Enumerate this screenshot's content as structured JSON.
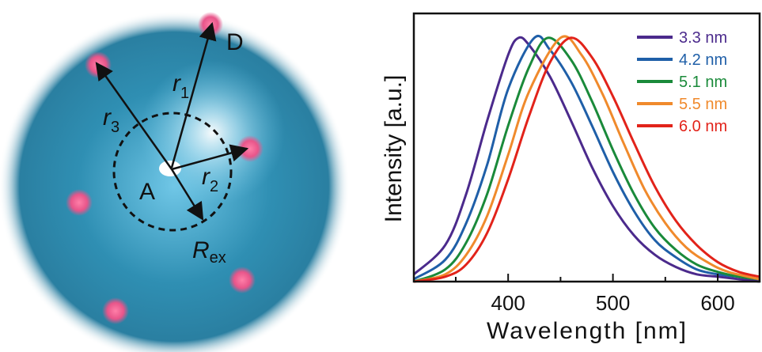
{
  "diagram": {
    "label_a": "A",
    "label_d": "D",
    "label_r1": "r",
    "label_r1_sub": "1",
    "label_r2": "r",
    "label_r2_sub": "2",
    "label_r3": "r",
    "label_r3_sub": "3",
    "label_rex": "R",
    "label_rex_sub": "ex",
    "sphere_color": "#2f8fb3",
    "dot_color": "#e8558a"
  },
  "chart_data": {
    "type": "line",
    "title": "",
    "xlabel": "Wavelength [nm]",
    "ylabel": "Intensity [a.u.]",
    "xlim": [
      310,
      640
    ],
    "ylim": [
      0,
      1.1
    ],
    "xticks": [
      400,
      500,
      600
    ],
    "xtick_labels": [
      "400",
      "500",
      "600"
    ],
    "grid": false,
    "legend_position": "top-right",
    "series": [
      {
        "name": "3.3 nm",
        "color": "#4b2a8c",
        "peak": 410,
        "x": [
          310,
          340,
          360,
          380,
          400,
          410,
          420,
          440,
          460,
          480,
          500,
          520,
          540,
          560,
          580,
          600,
          620,
          640
        ],
        "y": [
          0.03,
          0.15,
          0.36,
          0.66,
          0.93,
          1.0,
          0.97,
          0.84,
          0.66,
          0.47,
          0.31,
          0.19,
          0.11,
          0.06,
          0.03,
          0.02,
          0.01,
          0.0
        ]
      },
      {
        "name": "4.2 nm",
        "color": "#1f5fa8",
        "peak": 425,
        "x": [
          310,
          340,
          360,
          380,
          400,
          425,
          440,
          460,
          480,
          500,
          520,
          540,
          560,
          580,
          600,
          620,
          640
        ],
        "y": [
          0.01,
          0.09,
          0.24,
          0.48,
          0.79,
          1.0,
          0.95,
          0.82,
          0.64,
          0.45,
          0.29,
          0.17,
          0.1,
          0.05,
          0.03,
          0.02,
          0.01
        ]
      },
      {
        "name": "5.1 nm",
        "color": "#1a8a3a",
        "peak": 438,
        "x": [
          310,
          340,
          360,
          380,
          400,
          420,
          438,
          460,
          480,
          500,
          520,
          540,
          560,
          580,
          600,
          620,
          640
        ],
        "y": [
          0.0,
          0.05,
          0.16,
          0.36,
          0.64,
          0.88,
          1.0,
          0.91,
          0.74,
          0.54,
          0.36,
          0.22,
          0.13,
          0.07,
          0.04,
          0.02,
          0.01
        ]
      },
      {
        "name": "5.5 nm",
        "color": "#f08a2c",
        "peak": 450,
        "x": [
          310,
          340,
          360,
          380,
          400,
          420,
          450,
          470,
          490,
          510,
          530,
          550,
          570,
          590,
          610,
          640
        ],
        "y": [
          0.0,
          0.03,
          0.11,
          0.27,
          0.52,
          0.78,
          1.0,
          0.93,
          0.77,
          0.57,
          0.38,
          0.24,
          0.14,
          0.08,
          0.04,
          0.01
        ]
      },
      {
        "name": "6.0 nm",
        "color": "#e2231a",
        "peak": 460,
        "x": [
          310,
          340,
          360,
          380,
          400,
          420,
          440,
          460,
          480,
          500,
          520,
          540,
          560,
          580,
          600,
          620,
          640
        ],
        "y": [
          0.0,
          0.02,
          0.07,
          0.2,
          0.42,
          0.68,
          0.9,
          1.0,
          0.92,
          0.76,
          0.57,
          0.39,
          0.25,
          0.15,
          0.08,
          0.04,
          0.02
        ]
      }
    ]
  }
}
